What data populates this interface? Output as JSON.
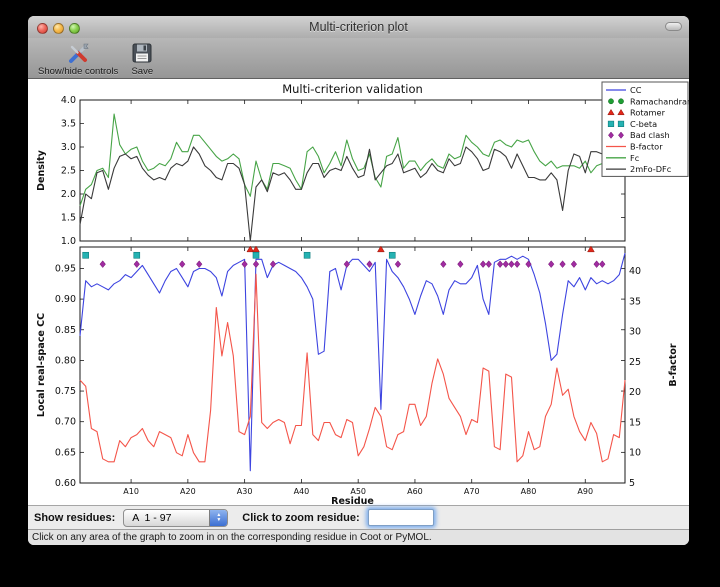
{
  "window": {
    "title": "Multi-criterion plot"
  },
  "toolbar": {
    "show_hide_label": "Show/hide controls",
    "save_label": "Save"
  },
  "controls": {
    "show_residues_label": "Show residues:",
    "residue_range_value": "A  1 - 97",
    "zoom_residue_label": "Click to zoom residue:",
    "zoom_input_value": ""
  },
  "status": {
    "message": "Click on any area of the graph to zoom in on the corresponding residue in Coot or PyMOL."
  },
  "chart_data": {
    "type": "line",
    "title": "Multi-criterion validation",
    "xlabel": "Residue",
    "x_range": [
      1,
      97
    ],
    "x_tick_positions": [
      10,
      20,
      30,
      40,
      50,
      60,
      70,
      80,
      90
    ],
    "x_tick_labels": [
      "A10",
      "A20",
      "A30",
      "A40",
      "A50",
      "A60",
      "A70",
      "A80",
      "A90"
    ],
    "legend": {
      "position": "upper right",
      "entries": [
        {
          "label": "CC",
          "type": "line",
          "color": "#3d44e0"
        },
        {
          "label": "Ramachandran",
          "type": "circle",
          "color": "#1e9e33"
        },
        {
          "label": "Rotamer",
          "type": "triangle",
          "color": "#e2271a"
        },
        {
          "label": "C-beta",
          "type": "square",
          "color": "#25b2b2"
        },
        {
          "label": "Bad clash",
          "type": "diamond",
          "color": "#a02ca0"
        },
        {
          "label": "B-factor",
          "type": "line",
          "color": "#f4554a"
        },
        {
          "label": "Fc",
          "type": "line",
          "color": "#47a447"
        },
        {
          "label": "2mFo-DFc",
          "type": "line",
          "color": "#3a3a3a"
        }
      ]
    },
    "subplots": [
      {
        "name": "density",
        "ylabel": "Density",
        "ylim": [
          1.0,
          4.0
        ],
        "ytick_labels": [
          "1.0",
          "1.5",
          "2.0",
          "2.5",
          "3.0",
          "3.5",
          "4.0"
        ],
        "ytick_values": [
          1.0,
          1.5,
          2.0,
          2.5,
          3.0,
          3.5,
          4.0
        ],
        "grid": false,
        "series": [
          {
            "name": "Fc",
            "color": "#47a447",
            "values": [
              1.75,
              2.1,
              2.2,
              2.5,
              2.55,
              2.35,
              3.7,
              3.05,
              2.85,
              2.95,
              3.0,
              2.7,
              2.5,
              2.55,
              2.65,
              2.6,
              2.75,
              3.1,
              2.9,
              2.9,
              3.25,
              3.25,
              3.1,
              2.95,
              2.8,
              2.7,
              2.75,
              2.85,
              2.75,
              2.2,
              1.95,
              2.7,
              2.3,
              2.1,
              2.65,
              2.65,
              2.6,
              2.55,
              2.3,
              2.1,
              2.9,
              3.0,
              2.8,
              2.45,
              2.65,
              2.9,
              2.6,
              3.15,
              2.75,
              2.5,
              2.55,
              2.85,
              2.35,
              2.15,
              2.8,
              2.85,
              3.2,
              2.55,
              2.7,
              2.7,
              2.5,
              2.65,
              2.75,
              2.6,
              2.55,
              2.85,
              2.75,
              2.8,
              3.25,
              3.1,
              3.0,
              2.85,
              2.8,
              3.1,
              3.15,
              3.05,
              3.0,
              3.15,
              3.1,
              3.15,
              2.9,
              2.7,
              2.6,
              2.7,
              2.55,
              2.6,
              2.6,
              2.6,
              2.55,
              2.7,
              2.45,
              2.6,
              2.65,
              2.6,
              2.7,
              3.0,
              3.55
            ]
          },
          {
            "name": "2mFo-DFc",
            "color": "#3a3a3a",
            "values": [
              1.35,
              2.0,
              1.9,
              2.45,
              2.5,
              2.1,
              2.55,
              2.8,
              2.85,
              2.75,
              2.8,
              2.55,
              2.4,
              2.3,
              2.35,
              2.3,
              2.55,
              2.65,
              2.6,
              2.7,
              3.0,
              2.85,
              2.6,
              2.5,
              2.35,
              2.3,
              2.65,
              2.65,
              2.55,
              2.2,
              1.0,
              2.15,
              2.3,
              2.05,
              2.45,
              2.4,
              2.45,
              2.3,
              2.1,
              2.1,
              2.45,
              2.65,
              2.65,
              2.35,
              2.5,
              2.55,
              2.5,
              2.8,
              2.55,
              2.35,
              2.4,
              2.95,
              2.3,
              2.45,
              2.6,
              2.65,
              2.85,
              2.45,
              2.5,
              2.55,
              2.35,
              2.45,
              2.65,
              2.5,
              2.45,
              2.75,
              2.6,
              2.65,
              3.0,
              2.9,
              2.75,
              2.5,
              2.55,
              2.95,
              2.9,
              2.8,
              2.55,
              2.85,
              2.6,
              2.35,
              2.35,
              2.3,
              2.3,
              2.45,
              2.3,
              1.65,
              2.5,
              2.85,
              2.8,
              2.45,
              2.9,
              2.9,
              2.85,
              2.8,
              2.85,
              2.9,
              2.95
            ]
          }
        ]
      },
      {
        "name": "cc_and_bfactor",
        "ylabel_left": "Local real-space CC",
        "ylim_left": [
          0.6,
          0.985
        ],
        "ytick_labels_left": [
          "0.60",
          "0.65",
          "0.70",
          "0.75",
          "0.80",
          "0.85",
          "0.90",
          "0.95"
        ],
        "ytick_values_left": [
          0.6,
          0.65,
          0.7,
          0.75,
          0.8,
          0.85,
          0.9,
          0.95
        ],
        "ylabel_right": "B-factor",
        "ylim_right": [
          5,
          44
        ],
        "ytick_labels_right": [
          "5",
          "10",
          "15",
          "20",
          "25",
          "30",
          "35",
          "40"
        ],
        "ytick_values_right": [
          5,
          10,
          15,
          20,
          25,
          30,
          35,
          40
        ],
        "grid": false,
        "series": [
          {
            "name": "CC",
            "axis": "left",
            "color": "#3d44e0",
            "values": [
              0.84,
              0.93,
              0.92,
              0.925,
              0.92,
              0.915,
              0.925,
              0.93,
              0.94,
              0.935,
              0.945,
              0.955,
              0.94,
              0.925,
              0.91,
              0.93,
              0.945,
              0.95,
              0.935,
              0.92,
              0.945,
              0.95,
              0.95,
              0.945,
              0.935,
              0.905,
              0.945,
              0.955,
              0.96,
              0.965,
              0.62,
              0.965,
              0.965,
              0.935,
              0.955,
              0.96,
              0.955,
              0.95,
              0.945,
              0.935,
              0.92,
              0.9,
              0.81,
              0.815,
              0.945,
              0.95,
              0.915,
              0.955,
              0.965,
              0.965,
              0.955,
              0.945,
              0.96,
              0.72,
              0.965,
              0.945,
              0.935,
              0.92,
              0.9,
              0.875,
              0.905,
              0.93,
              0.925,
              0.905,
              0.875,
              0.915,
              0.93,
              0.925,
              0.925,
              0.935,
              0.955,
              0.9,
              0.875,
              0.96,
              0.965,
              0.965,
              0.97,
              0.965,
              0.97,
              0.965,
              0.94,
              0.91,
              0.86,
              0.8,
              0.81,
              0.875,
              0.93,
              0.92,
              0.935,
              0.915,
              0.935,
              0.925,
              0.93,
              0.925,
              0.93,
              0.94,
              0.975
            ]
          },
          {
            "name": "B-factor",
            "axis": "right",
            "color": "#f4554a",
            "values": [
              22,
              21,
              14,
              13.5,
              9,
              8.5,
              8.5,
              12,
              11,
              12.5,
              13,
              14,
              12,
              11,
              13.5,
              13,
              12.5,
              10,
              9.5,
              13,
              10,
              8.5,
              8.5,
              17,
              34,
              26,
              31.5,
              26,
              13.5,
              13,
              16,
              39.5,
              15,
              14,
              15,
              15.5,
              15,
              11.5,
              14.5,
              14.5,
              26.5,
              13,
              12,
              15,
              15,
              13,
              12.5,
              15.5,
              15,
              9.5,
              11,
              14,
              17.5,
              16,
              11,
              10.5,
              13,
              13.5,
              18,
              18,
              14.5,
              16,
              21.5,
              25.5,
              23,
              19,
              17.5,
              16,
              13,
              15.5,
              15,
              24,
              23.5,
              11,
              10.5,
              23,
              22.5,
              8.5,
              9.5,
              13.5,
              10.5,
              11,
              16,
              18,
              24,
              19.5,
              20.5,
              16,
              13.5,
              12,
              15,
              13.2,
              8.5,
              9,
              13,
              12.5,
              22
            ]
          }
        ],
        "outlier_markers": [
          {
            "name": "Ramachandran",
            "shape": "circle",
            "color": "#1e9e33",
            "y": 0.981,
            "residues": []
          },
          {
            "name": "Rotamer",
            "shape": "triangle",
            "color": "#e2271a",
            "y": 0.981,
            "residues": [
              31,
              32,
              54,
              91
            ]
          },
          {
            "name": "C-beta",
            "shape": "square",
            "color": "#25b2b2",
            "y": 0.9715,
            "residues": [
              2,
              11,
              32,
              41,
              56
            ]
          },
          {
            "name": "Bad clash",
            "shape": "diamond",
            "color": "#a02ca0",
            "y": 0.957,
            "residues": [
              5,
              11,
              19,
              22,
              30,
              32,
              35,
              48,
              52,
              57,
              65,
              68,
              72,
              73,
              75,
              76,
              77,
              78,
              80,
              84,
              86,
              88,
              92,
              93
            ]
          }
        ]
      }
    ]
  }
}
